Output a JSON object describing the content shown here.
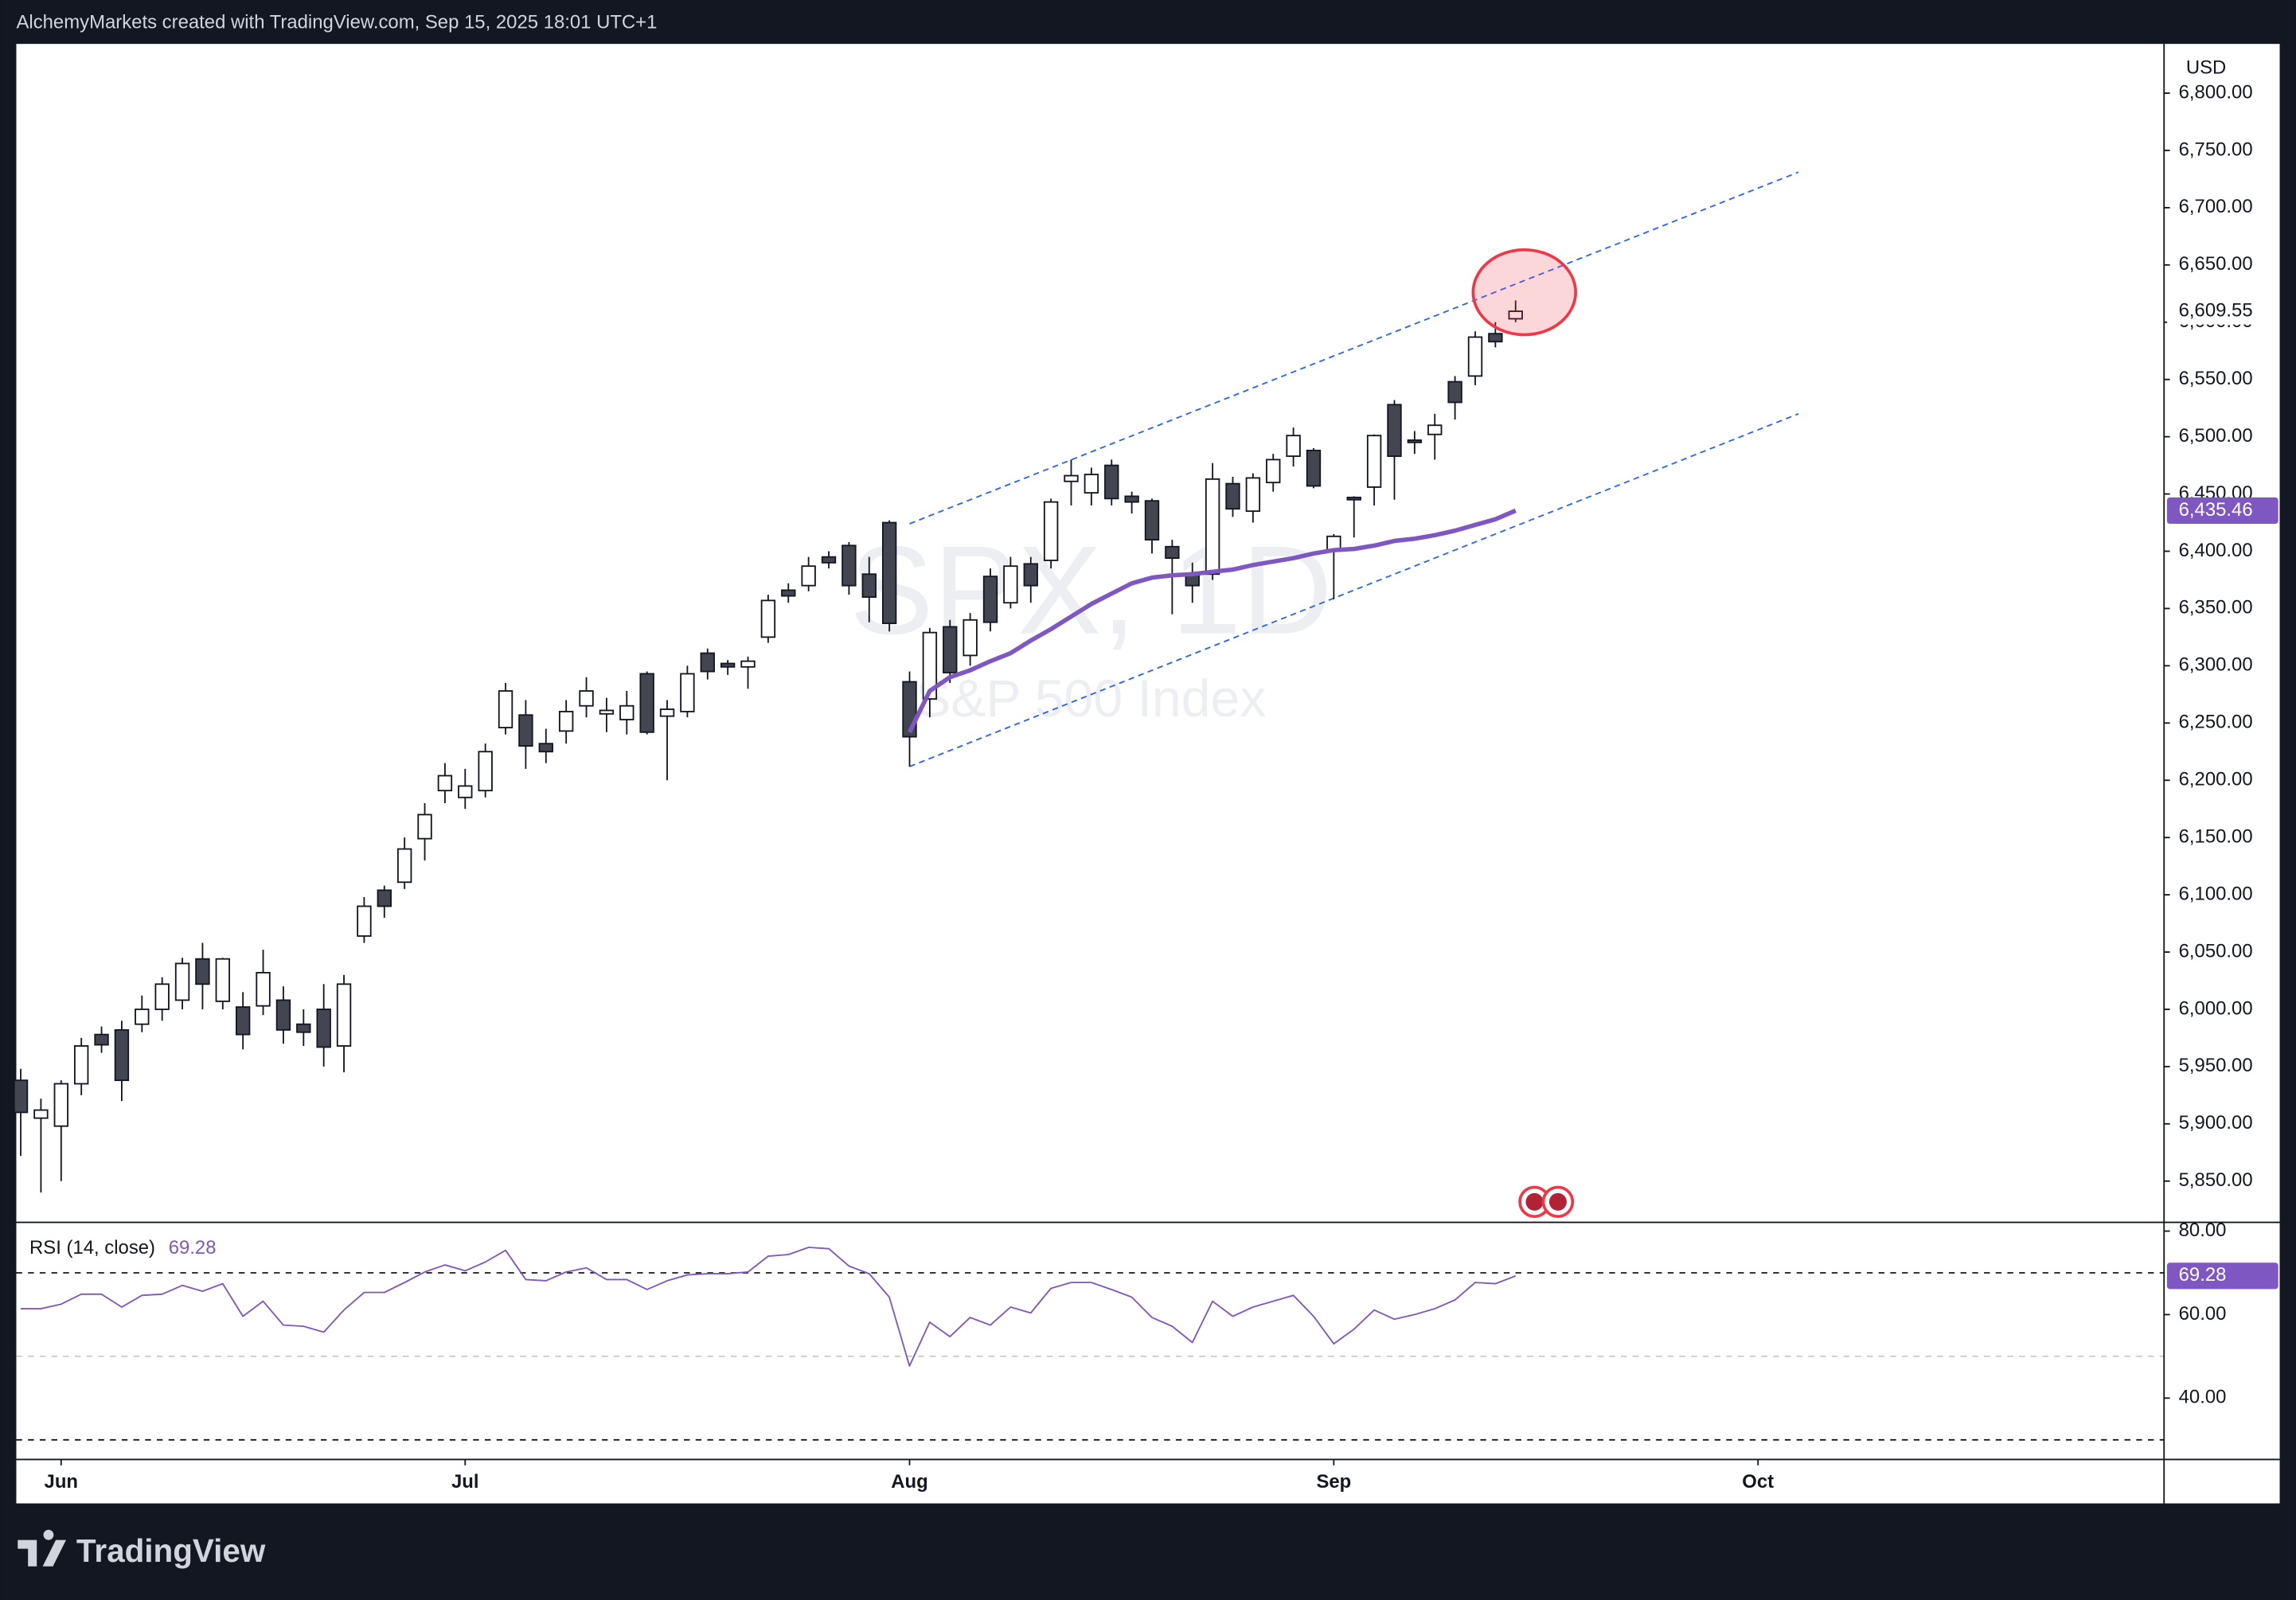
{
  "chart_data": {
    "type": "candlestick",
    "header": "AlchemyMarkets created with TradingView.com, Sep 15, 2025 18:01 UTC+1",
    "currency": "USD",
    "watermark_symbol": "SPX, 1D",
    "watermark_name": "S&P 500 Index",
    "brand": "TradingView",
    "up_color": "#ffffff",
    "down_color": "#434651",
    "open": [
      5938,
      5905,
      5898,
      5935,
      5978,
      5982,
      5987,
      6000,
      6008,
      6044,
      6007,
      6002,
      6003,
      6008,
      5987,
      6000,
      5968,
      6064,
      6104,
      6111,
      6149,
      6191,
      6185,
      6191,
      6246,
      6257,
      6232,
      6243,
      6265,
      6258,
      6253,
      6293,
      6256,
      6260,
      6311,
      6302,
      6299,
      6325,
      6366,
      6370,
      6395,
      6405,
      6380,
      6425,
      6286,
      6271,
      6334,
      6309,
      6378,
      6355,
      6389,
      6392,
      6461,
      6451,
      6475,
      6448,
      6444,
      6404,
      6380,
      6380,
      6459,
      6435,
      6460,
      6483,
      6488,
      6400,
      6447,
      6456,
      6528,
      6497,
      6502,
      6548,
      6553,
      6590,
      6603
    ],
    "high": [
      5948,
      5922,
      5938,
      5975,
      5985,
      5990,
      6012,
      6028,
      6045,
      6058,
      6045,
      6015,
      6052,
      6020,
      6000,
      6022,
      6030,
      6098,
      6108,
      6150,
      6180,
      6215,
      6210,
      6232,
      6285,
      6270,
      6245,
      6270,
      6290,
      6272,
      6278,
      6295,
      6270,
      6300,
      6315,
      6305,
      6308,
      6362,
      6372,
      6395,
      6400,
      6408,
      6395,
      6427,
      6295,
      6333,
      6340,
      6346,
      6385,
      6395,
      6395,
      6446,
      6480,
      6473,
      6480,
      6452,
      6446,
      6410,
      6390,
      6477,
      6465,
      6468,
      6485,
      6508,
      6490,
      6415,
      6448,
      6502,
      6532,
      6505,
      6520,
      6553,
      6592,
      6600,
      6619
    ],
    "low": [
      5872,
      5840,
      5850,
      5925,
      5962,
      5920,
      5980,
      5990,
      6000,
      6000,
      6000,
      5965,
      5995,
      5970,
      5968,
      5950,
      5945,
      6058,
      6080,
      6105,
      6130,
      6180,
      6175,
      6185,
      6240,
      6210,
      6215,
      6232,
      6255,
      6242,
      6240,
      6240,
      6200,
      6255,
      6288,
      6292,
      6280,
      6320,
      6355,
      6365,
      6385,
      6362,
      6338,
      6330,
      6212,
      6255,
      6285,
      6300,
      6330,
      6350,
      6355,
      6385,
      6440,
      6440,
      6440,
      6433,
      6398,
      6345,
      6355,
      6375,
      6430,
      6425,
      6452,
      6474,
      6455,
      6358,
      6412,
      6440,
      6445,
      6485,
      6480,
      6515,
      6545,
      6578,
      6600
    ],
    "close": [
      5910,
      5912,
      5935,
      5968,
      5969,
      5938,
      6000,
      6022,
      6040,
      6022,
      6044,
      5978,
      6032,
      5982,
      5980,
      5967,
      6022,
      6090,
      6090,
      6140,
      6170,
      6204,
      6195,
      6225,
      6278,
      6230,
      6225,
      6260,
      6278,
      6261,
      6265,
      6242,
      6262,
      6293,
      6295,
      6299,
      6304,
      6357,
      6361,
      6387,
      6390,
      6370,
      6360,
      6337,
      6238,
      6329,
      6294,
      6340,
      6338,
      6387,
      6370,
      6443,
      6466,
      6467,
      6446,
      6443,
      6410,
      6394,
      6370,
      6463,
      6437,
      6464,
      6480,
      6501,
      6457,
      6413,
      6445,
      6501,
      6483,
      6495,
      6510,
      6530,
      6587,
      6583,
      6609.55
    ],
    "last_close_label": "6,609.55",
    "ma": {
      "color": "#7e57c2",
      "last_value_label": "6,435.46",
      "values": [
        null,
        null,
        null,
        null,
        null,
        null,
        null,
        null,
        null,
        null,
        null,
        null,
        null,
        null,
        null,
        null,
        null,
        null,
        null,
        null,
        null,
        null,
        null,
        null,
        null,
        null,
        null,
        null,
        null,
        null,
        null,
        null,
        null,
        null,
        null,
        null,
        null,
        null,
        null,
        null,
        null,
        null,
        null,
        null,
        6242,
        6278,
        6290,
        6296,
        6304,
        6311,
        6322,
        6332,
        6343,
        6354,
        6363,
        6372,
        6377,
        6379,
        6380,
        6382,
        6384,
        6388,
        6391,
        6394,
        6398,
        6401,
        6402,
        6405,
        6409,
        6411,
        6414,
        6418,
        6423,
        6428,
        6435.46
      ]
    },
    "trendlines": {
      "color": "#2962ff",
      "x": [
        44,
        88
      ],
      "upper": [
        6424,
        6731
      ],
      "lower": [
        6212,
        6520
      ]
    },
    "xlim": [
      -0.22,
      106.1
    ],
    "xticks": [
      {
        "value": 2,
        "label": "Jun"
      },
      {
        "value": 22,
        "label": "Jul"
      },
      {
        "value": 44,
        "label": "Aug"
      },
      {
        "value": 65,
        "label": "Sep"
      },
      {
        "value": 86,
        "label": "Oct"
      }
    ],
    "ylim": [
      5814,
      6843
    ],
    "yticks": [
      {
        "value": 5850,
        "label": "5,850.00"
      },
      {
        "value": 5900,
        "label": "5,900.00"
      },
      {
        "value": 5950,
        "label": "5,950.00"
      },
      {
        "value": 6000,
        "label": "6,000.00"
      },
      {
        "value": 6050,
        "label": "6,050.00"
      },
      {
        "value": 6100,
        "label": "6,100.00"
      },
      {
        "value": 6150,
        "label": "6,150.00"
      },
      {
        "value": 6200,
        "label": "6,200.00"
      },
      {
        "value": 6250,
        "label": "6,250.00"
      },
      {
        "value": 6300,
        "label": "6,300.00"
      },
      {
        "value": 6350,
        "label": "6,350.00"
      },
      {
        "value": 6400,
        "label": "6,400.00"
      },
      {
        "value": 6450,
        "label": "6,450.00"
      },
      {
        "value": 6500,
        "label": "6,500.00"
      },
      {
        "value": 6550,
        "label": "6,550.00"
      },
      {
        "value": 6600,
        "label": "6,600.00"
      },
      {
        "value": 6650,
        "label": "6,650.00"
      },
      {
        "value": 6700,
        "label": "6,700.00"
      },
      {
        "value": 6750,
        "label": "6,750.00"
      },
      {
        "value": 6800,
        "label": "6,800.00"
      }
    ],
    "rsi": {
      "label": "RSI (14, close)",
      "color": "#7e57c2",
      "ylim": [
        25.3,
        82.1
      ],
      "yticks": [
        {
          "value": 80,
          "label": "80.00"
        },
        {
          "value": 60,
          "label": "60.00"
        },
        {
          "value": 40,
          "label": "40.00"
        }
      ],
      "levels": [
        70,
        50,
        30
      ],
      "values": [
        61.4,
        61.4,
        62.5,
        64.9,
        64.9,
        61.8,
        64.6,
        64.9,
        67.0,
        65.6,
        67.4,
        59.6,
        63.2,
        57.5,
        57.2,
        55.8,
        61.1,
        65.3,
        65.3,
        67.7,
        70.2,
        71.9,
        70.5,
        72.6,
        75.4,
        68.4,
        68.1,
        70.2,
        71.2,
        68.4,
        68.4,
        66.0,
        68.1,
        69.5,
        69.8,
        69.8,
        70.2,
        74.0,
        74.4,
        76.1,
        75.8,
        71.6,
        69.8,
        64.2,
        47.7,
        58.2,
        54.7,
        59.3,
        57.5,
        61.8,
        60.4,
        66.3,
        67.7,
        67.7,
        66.0,
        64.2,
        59.3,
        57.2,
        53.3,
        63.2,
        59.6,
        61.8,
        63.2,
        64.6,
        59.6,
        53.0,
        56.5,
        61.1,
        58.9,
        60.0,
        61.4,
        63.5,
        67.7,
        67.4,
        69.28
      ]
    }
  }
}
